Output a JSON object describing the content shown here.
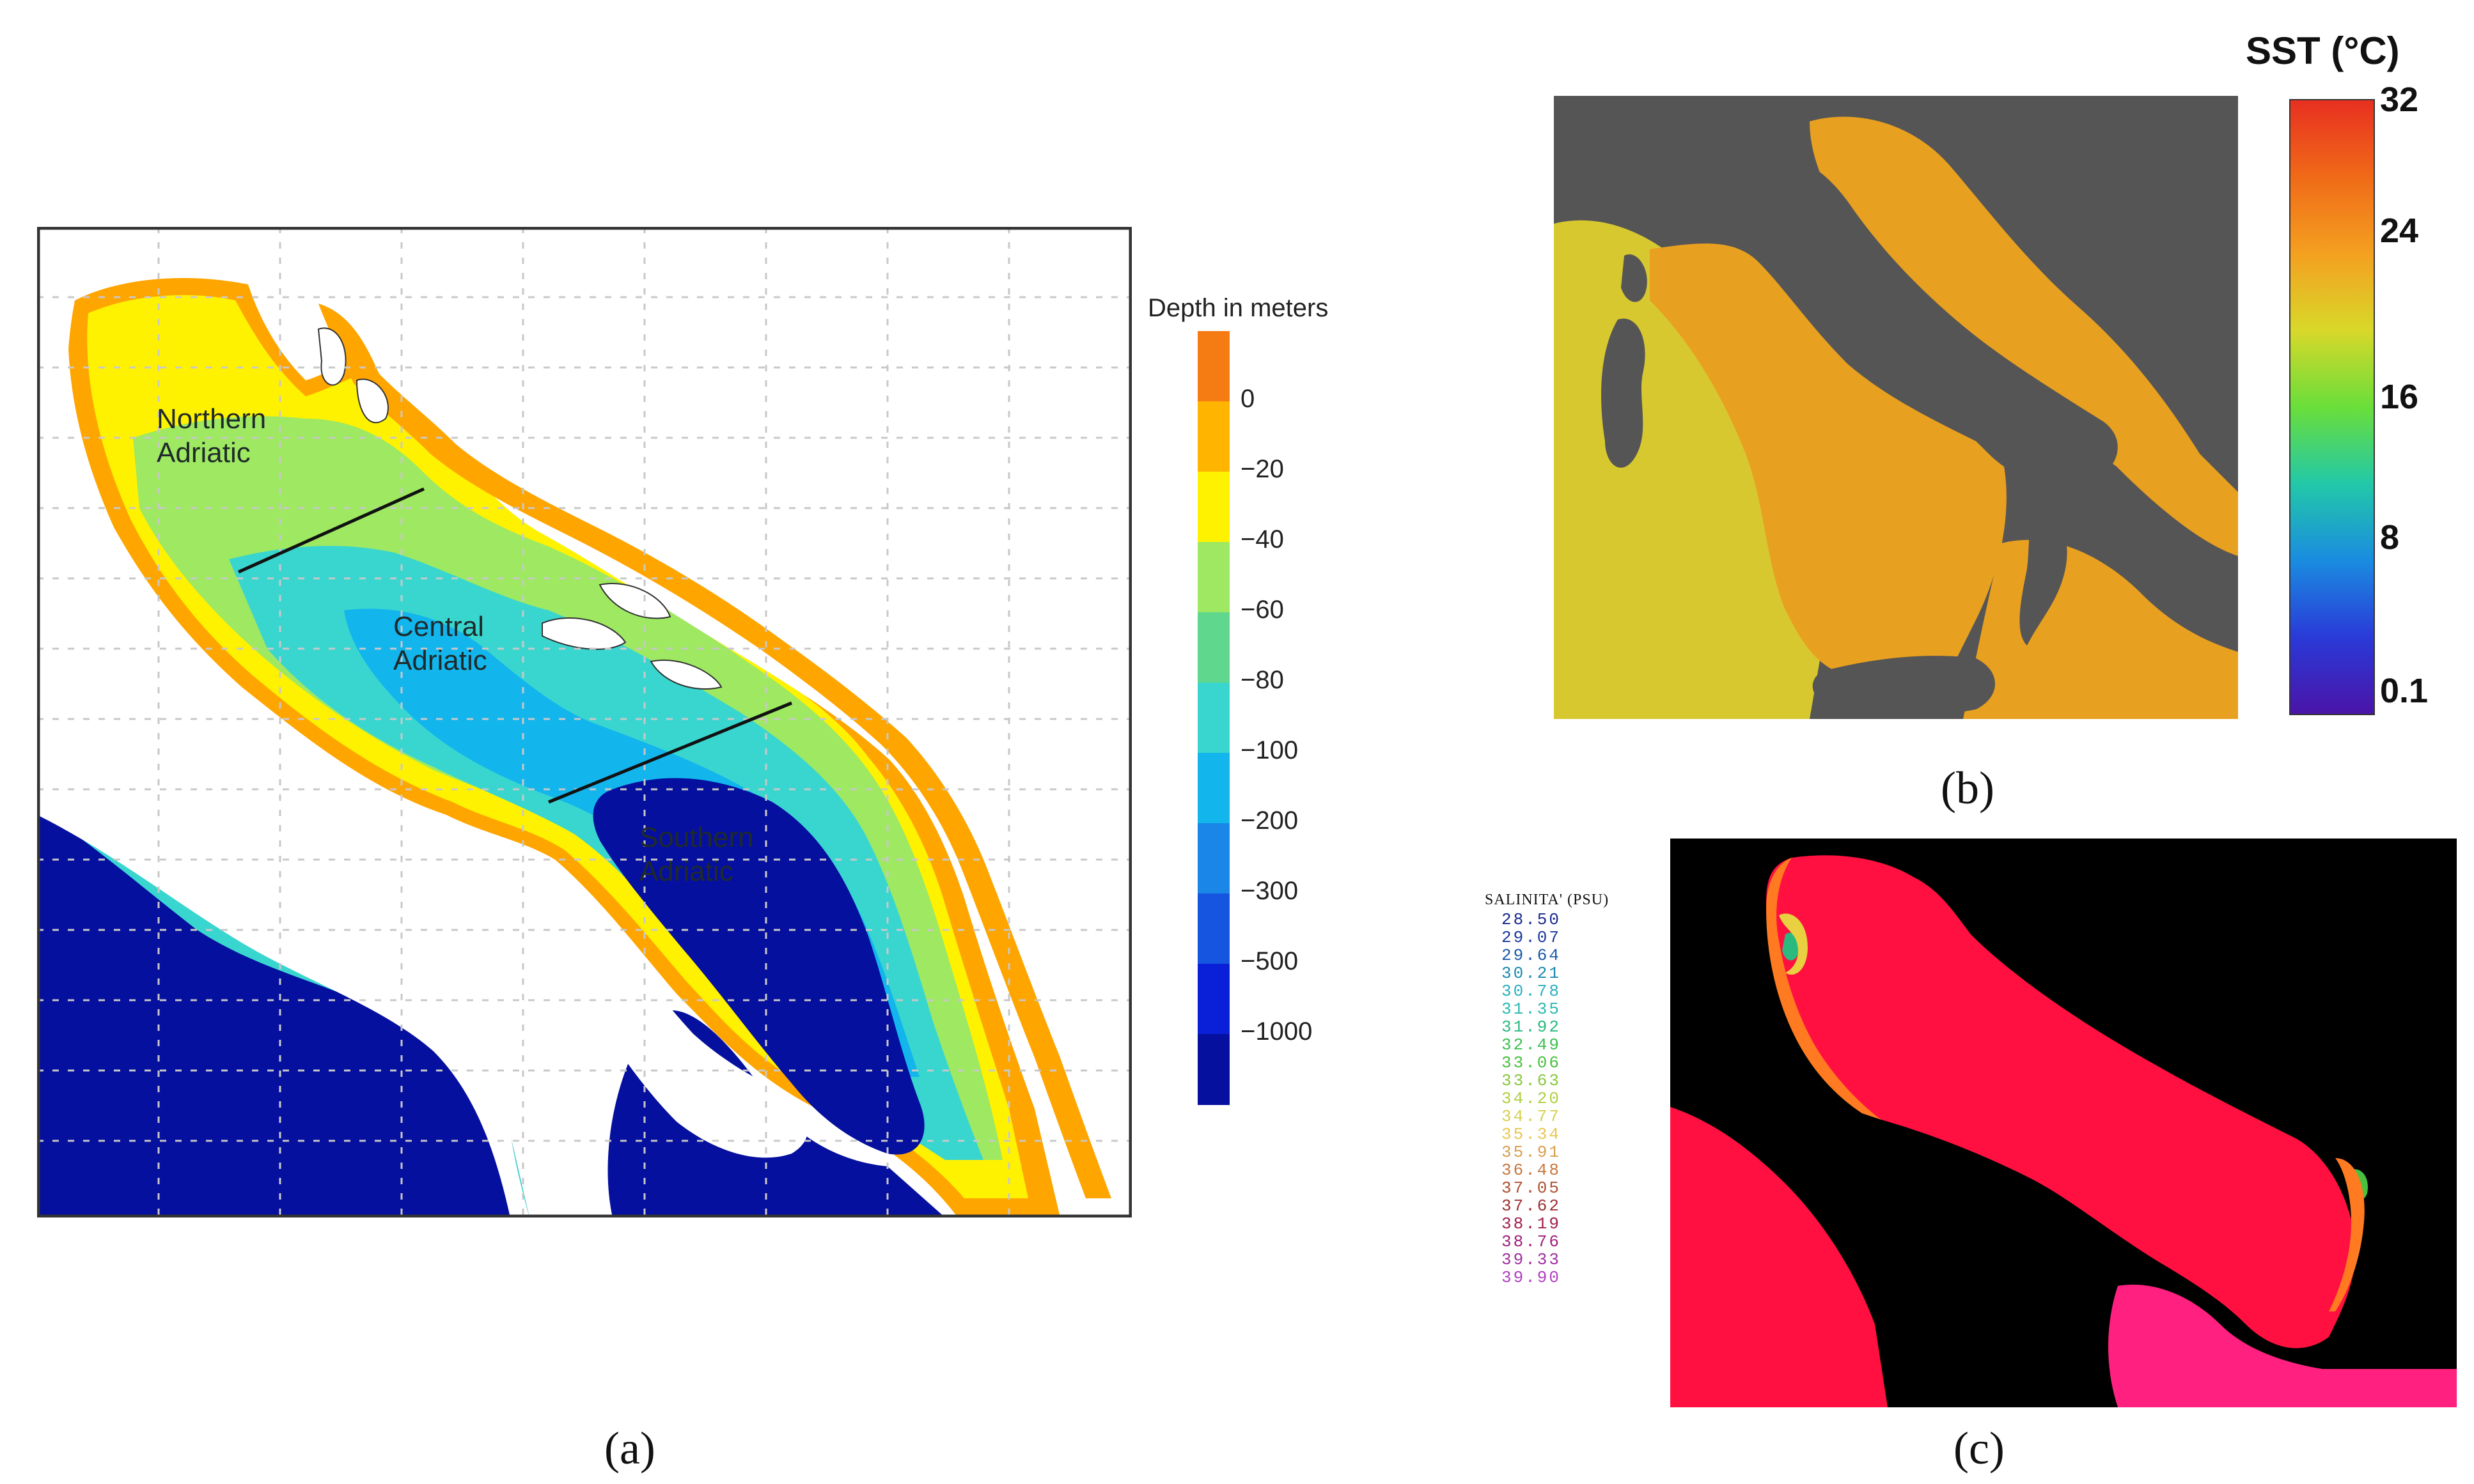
{
  "panel_a": {
    "caption": "(a)",
    "regions": [
      {
        "line1": "Northern",
        "line2": "Adriatic"
      },
      {
        "line1": "Central",
        "line2": "Adriatic"
      },
      {
        "line1": "Southern",
        "line2": "Adriatic"
      }
    ],
    "legend": {
      "title": "Depth in meters",
      "labels": [
        "0",
        "−20",
        "−40",
        "−60",
        "−80",
        "−100",
        "−200",
        "−300",
        "−500",
        "−1000"
      ],
      "colors": [
        "#f57c12",
        "#ffb400",
        "#fff200",
        "#9ee862",
        "#5fd88e",
        "#39d6d0",
        "#12b5ec",
        "#1a86e8",
        "#1555e0",
        "#0a1fd8",
        "#06109e"
      ]
    },
    "colors": {
      "land": "#ffffff",
      "coast": "#ffa500",
      "shelf": "#fff200",
      "mid": "#39d6d0",
      "deep": "#06109e"
    }
  },
  "panel_b": {
    "caption": "(b)",
    "colorbar": {
      "title": "SST (°C)",
      "ticks": [
        "32",
        "24",
        "16",
        "8",
        "0.1"
      ],
      "colors": [
        "#e83020",
        "#f06a18",
        "#f4a020",
        "#d8d82a",
        "#6ade3a",
        "#22c8a8",
        "#1a8ce0",
        "#2a3ad8",
        "#4a14a8"
      ]
    },
    "colors": {
      "land": "#555555",
      "sea": "#e8a020",
      "sea_west": "#d8c830"
    }
  },
  "panel_c": {
    "caption": "(c)",
    "title": "SALINITA' (PSU)",
    "values": [
      "28.50",
      "29.07",
      "29.64",
      "30.21",
      "30.78",
      "31.35",
      "31.92",
      "32.49",
      "33.06",
      "33.63",
      "34.20",
      "34.77",
      "35.34",
      "35.91",
      "36.48",
      "37.05",
      "37.62",
      "38.19",
      "38.76",
      "39.33",
      "39.90"
    ],
    "value_colors": [
      "#1a2a8a",
      "#1a3a9a",
      "#1a5aaa",
      "#1a8ab0",
      "#2ab0c0",
      "#2abab0",
      "#2aba80",
      "#3ac050",
      "#4ac040",
      "#8ac840",
      "#b0d040",
      "#d8d050",
      "#e8c850",
      "#d8a050",
      "#c87840",
      "#b05030",
      "#a03030",
      "#a02050",
      "#a02080",
      "#a030a0",
      "#b040c0"
    ],
    "colors": {
      "background": "#000000",
      "sea": "#ff1040",
      "sea_south": "#ff2080"
    }
  }
}
